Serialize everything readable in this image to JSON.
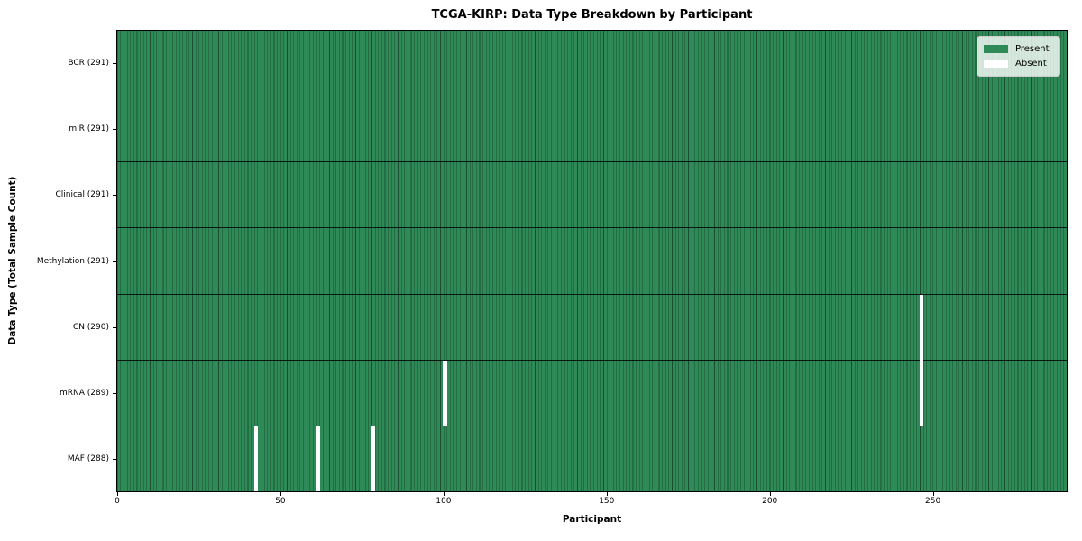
{
  "chart_data": {
    "type": "heatmap",
    "title": "TCGA-KIRP: Data Type Breakdown by Participant",
    "xlabel": "Participant",
    "ylabel": "Data Type (Total Sample Count)",
    "n_participants": 291,
    "x_ticks": [
      0,
      50,
      100,
      150,
      200,
      250
    ],
    "x_range": [
      0,
      291
    ],
    "grid": false,
    "legend_position": "upper-right",
    "legend": [
      {
        "label": "Present",
        "color": "#2e8b57"
      },
      {
        "label": "Absent",
        "color": "#ffffff"
      }
    ],
    "rows": [
      {
        "label": "BCR (291)",
        "data_type": "BCR",
        "total_samples": 291,
        "absent_participant_indices": []
      },
      {
        "label": "miR (291)",
        "data_type": "miR",
        "total_samples": 291,
        "absent_participant_indices": []
      },
      {
        "label": "Clinical (291)",
        "data_type": "Clinical",
        "total_samples": 291,
        "absent_participant_indices": []
      },
      {
        "label": "Methylation (291)",
        "data_type": "Methylation",
        "total_samples": 291,
        "absent_participant_indices": []
      },
      {
        "label": "CN (290)",
        "data_type": "CN",
        "total_samples": 290,
        "absent_participant_indices": [
          246
        ]
      },
      {
        "label": "mRNA (289)",
        "data_type": "mRNA",
        "total_samples": 289,
        "absent_participant_indices": [
          100,
          246
        ]
      },
      {
        "label": "MAF (288)",
        "data_type": "MAF",
        "total_samples": 288,
        "absent_participant_indices": [
          42,
          61,
          78
        ]
      }
    ]
  },
  "colors": {
    "present": "#2e8b57",
    "absent": "#ffffff",
    "cell_border": "rgba(0,0,0,0.45)",
    "row_border": "rgba(0,0,0,0.82)",
    "frame": "#000000",
    "legend_background": "rgba(255,255,255,0.8)",
    "legend_border": "#cccccc"
  }
}
